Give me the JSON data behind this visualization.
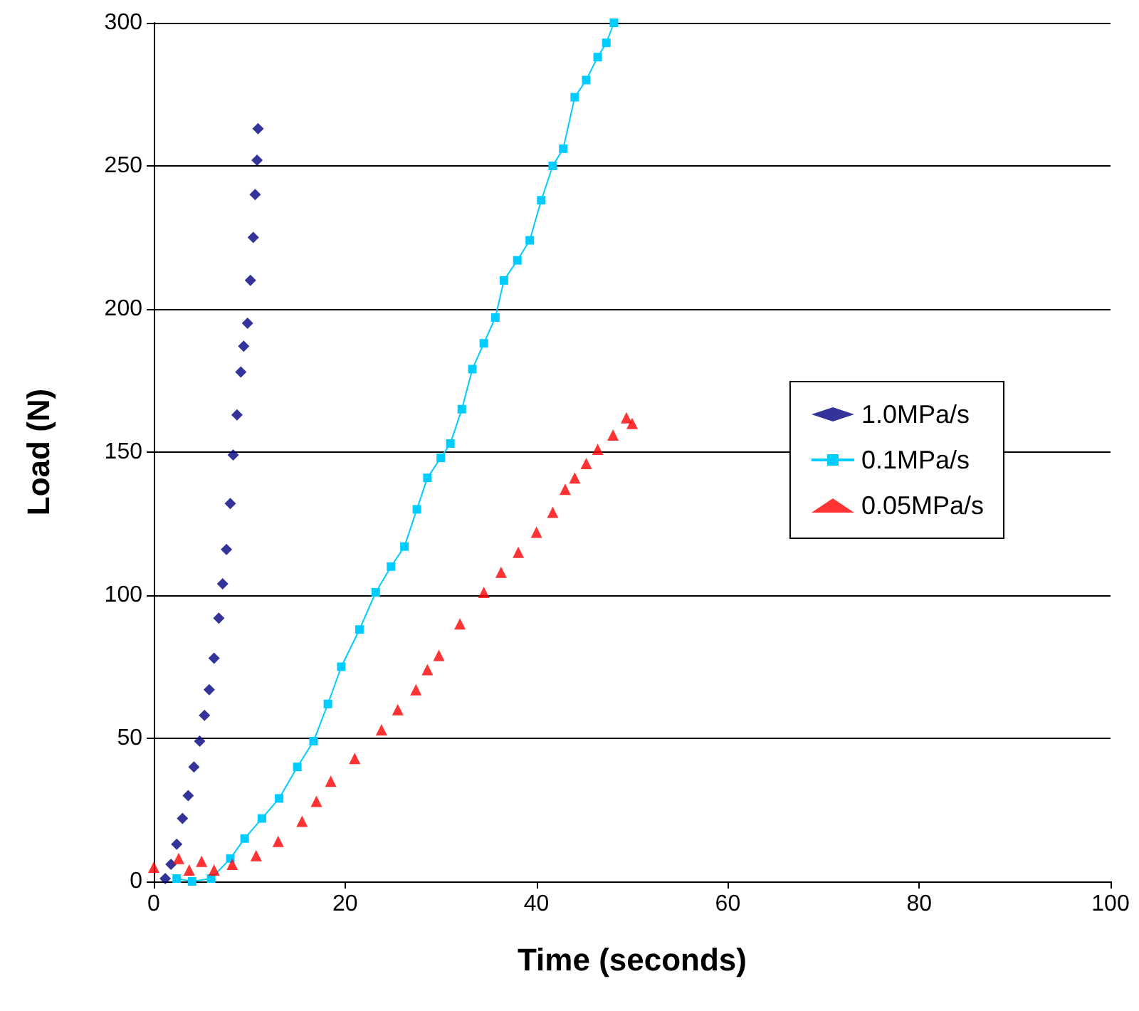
{
  "chart_data": {
    "type": "scatter",
    "xlabel": "Time (seconds)",
    "ylabel": "Load (N)",
    "xlim": [
      0,
      100
    ],
    "xticks": [
      0,
      20,
      40,
      60,
      80,
      100
    ],
    "ylim": [
      0,
      300
    ],
    "yticks": [
      0,
      50,
      100,
      150,
      200,
      250,
      300
    ],
    "grid": "y",
    "legend": "right",
    "series": [
      {
        "name": "1.0MPa/s",
        "color": "#000080",
        "marker": "diamond",
        "x": [
          1.2,
          1.8,
          2.4,
          3.0,
          3.6,
          4.2,
          4.8,
          5.3,
          5.8,
          6.3,
          6.8,
          7.2,
          7.6,
          8.0,
          8.3,
          8.7,
          9.1,
          9.4,
          9.8,
          10.1,
          10.4,
          10.6,
          10.8,
          10.9
        ],
        "values": [
          1,
          6,
          13,
          22,
          30,
          40,
          49,
          58,
          67,
          78,
          92,
          104,
          116,
          132,
          149,
          163,
          178,
          187,
          195,
          210,
          225,
          240,
          252,
          263
        ]
      },
      {
        "name": "0.1MPa/s",
        "color": "#00ccff",
        "type": "line",
        "marker": "square",
        "x": [
          2.4,
          4.0,
          6.0,
          8.0,
          9.5,
          11.3,
          13.1,
          15.0,
          16.7,
          18.2,
          19.6,
          21.5,
          23.2,
          24.8,
          26.2,
          27.5,
          28.6,
          30.0,
          31.0,
          32.2,
          33.3,
          34.5,
          35.7,
          36.6,
          38.0,
          39.3,
          40.5,
          41.7,
          42.8,
          44.0,
          45.2,
          46.4,
          47.3,
          48.1
        ],
        "values": [
          1,
          0,
          1,
          8,
          15,
          22,
          29,
          40,
          49,
          62,
          75,
          88,
          101,
          110,
          117,
          130,
          141,
          148,
          153,
          165,
          179,
          188,
          197,
          210,
          217,
          224,
          238,
          250,
          256,
          274,
          280,
          288,
          293,
          300
        ]
      },
      {
        "name": "0.05MPa/s",
        "color": "#ff0000",
        "marker": "triangle",
        "x": [
          0,
          2.6,
          3.7,
          5.0,
          6.3,
          8.2,
          10.7,
          13.0,
          15.5,
          17.0,
          18.5,
          21.0,
          23.8,
          25.5,
          27.4,
          28.6,
          29.8,
          32.0,
          34.5,
          36.3,
          38.1,
          40.0,
          41.7,
          43.0,
          44.0,
          45.2,
          46.4,
          48.0,
          49.4,
          50.0
        ],
        "values": [
          5,
          8,
          4,
          7,
          4,
          6,
          9,
          14,
          21,
          28,
          35,
          43,
          53,
          60,
          67,
          74,
          79,
          90,
          101,
          108,
          115,
          122,
          129,
          137,
          141,
          146,
          151,
          156,
          162,
          160
        ]
      }
    ]
  }
}
